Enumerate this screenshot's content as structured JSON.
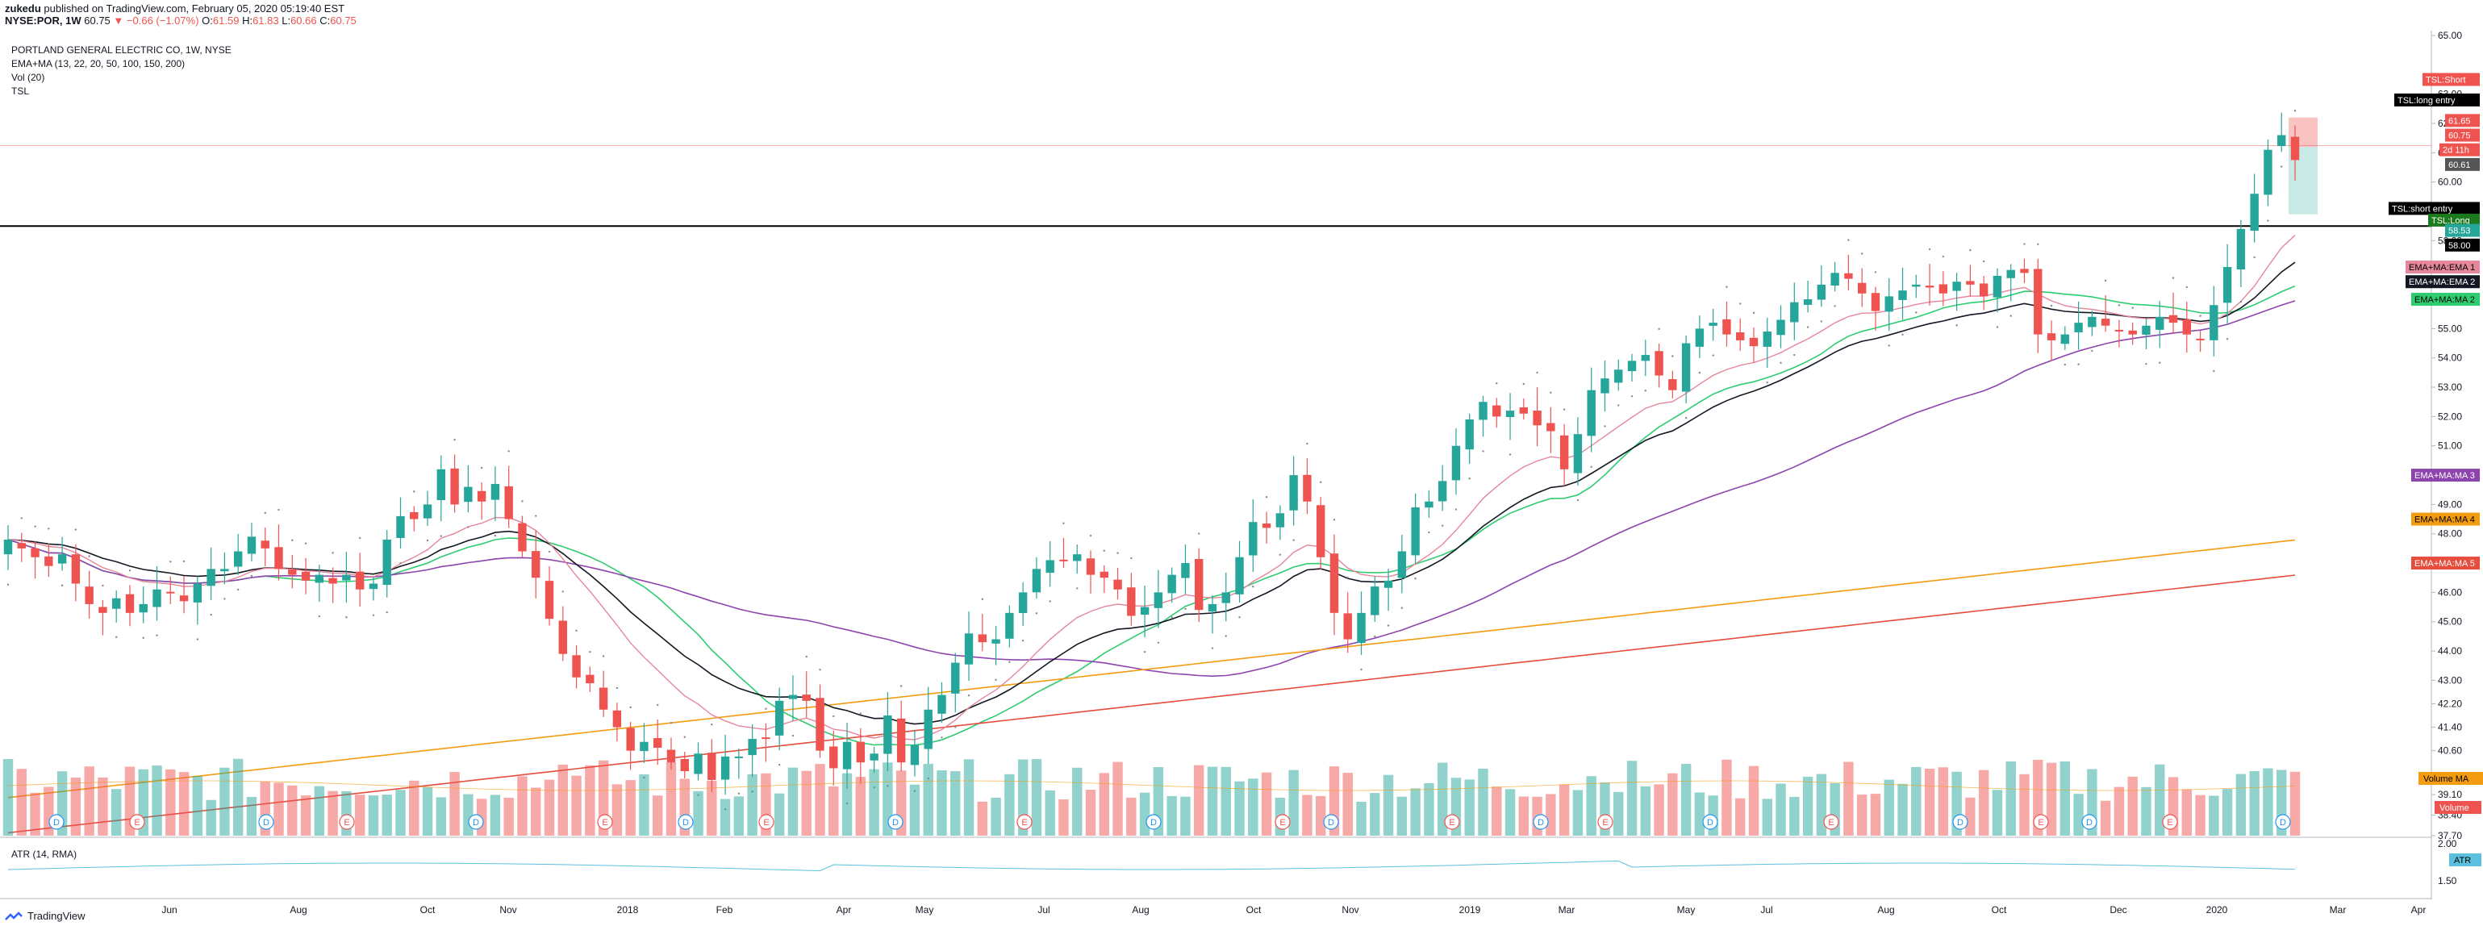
{
  "header": {
    "user": "zukedu",
    "published": "published on TradingView.com, February 05, 2020 05:19:40 EST",
    "symbol_line": "NYSE:POR, 1W",
    "last": "60.75",
    "change": "▼ −0.66 (−1.07%)",
    "o_label": "O:",
    "o": "61.59",
    "h_label": "H:",
    "h": "61.83",
    "l_label": "L:",
    "l": "60.66",
    "c_label": "C:",
    "c": "60.75"
  },
  "legend": {
    "title": "PORTLAND GENERAL ELECTRIC CO, 1W, NYSE",
    "ema_ma": "EMA+MA (13, 22, 20, 50, 100, 150, 200)",
    "vol": "Vol (20)",
    "tsl": "TSL",
    "atr": "ATR (14, RMA)"
  },
  "footer": {
    "brand": "TradingView"
  },
  "colors": {
    "up": "#26a69a",
    "down": "#ef5350",
    "ema1": "#e5869b",
    "ema2": "#131722",
    "ma2": "#2ecc71",
    "ma3": "#8e44ad",
    "ma4": "#f39c12",
    "ma5": "#e74c3c",
    "atr": "#5bc0de"
  },
  "chart_data": {
    "type": "candlestick",
    "title": "PORTLAND GENERAL ELECTRIC CO, 1W, NYSE",
    "price_axis_ticks": [
      "65.00",
      "63.00",
      "62.00",
      "61.00",
      "60.00",
      "59.00",
      "58.00",
      "57.00",
      "56.00",
      "55.00",
      "54.00",
      "53.00",
      "52.00",
      "51.00",
      "50.00",
      "49.00",
      "48.00",
      "47.00",
      "46.00",
      "45.00",
      "44.00",
      "43.00",
      "42.20",
      "41.40",
      "40.60",
      "39.10",
      "38.40",
      "37.70"
    ],
    "atr_axis_ticks": [
      "2.00",
      "1.50"
    ],
    "x_tick_labels": [
      "Jun",
      "Aug",
      "Oct",
      "Nov",
      "2018",
      "Feb",
      "Apr",
      "May",
      "Jul",
      "Aug",
      "Oct",
      "Nov",
      "2019",
      "Mar",
      "May",
      "Jul",
      "Aug",
      "Oct",
      "Dec",
      "2020",
      "Mar",
      "Apr"
    ],
    "ylim": [
      37.7,
      65.0
    ],
    "closes": [
      47.8,
      47.5,
      47.2,
      46.9,
      47.3,
      46.3,
      45.6,
      45.3,
      45.8,
      45.3,
      45.6,
      46.1,
      46.0,
      45.7,
      46.3,
      46.8,
      46.8,
      47.4,
      47.9,
      47.5,
      46.8,
      46.6,
      46.4,
      46.6,
      46.3,
      46.6,
      46.1,
      46.3,
      47.8,
      48.6,
      48.5,
      49.0,
      50.2,
      49.0,
      49.6,
      49.1,
      49.7,
      48.5,
      47.4,
      46.5,
      45.1,
      43.9,
      43.1,
      42.9,
      42.0,
      41.4,
      40.6,
      40.9,
      40.7,
      40.2,
      39.9,
      40.5,
      39.6,
      40.4,
      40.4,
      41.0,
      41.0,
      42.3,
      42.5,
      42.3,
      40.6,
      40.0,
      40.9,
      40.2,
      40.5,
      41.8,
      40.2,
      40.8,
      42.0,
      42.5,
      43.6,
      44.6,
      44.3,
      44.4,
      45.3,
      46.0,
      46.8,
      47.1,
      47.1,
      47.3,
      46.6,
      46.5,
      46.1,
      45.2,
      45.5,
      46.0,
      46.6,
      47.0,
      45.4,
      45.6,
      46.0,
      47.2,
      48.4,
      48.2,
      48.7,
      50.0,
      49.1,
      47.2,
      45.3,
      44.4,
      45.3,
      46.2,
      46.4,
      47.4,
      48.9,
      49.1,
      49.8,
      51.0,
      51.9,
      52.5,
      52.0,
      52.2,
      52.1,
      51.7,
      51.5,
      50.2,
      51.4,
      52.9,
      53.3,
      53.6,
      53.9,
      54.1,
      53.4,
      52.9,
      54.5,
      55.0,
      55.2,
      54.8,
      54.6,
      54.4,
      54.9,
      55.3,
      55.9,
      56.0,
      56.5,
      56.9,
      56.7,
      56.2,
      55.6,
      56.1,
      56.3,
      56.5,
      56.4,
      56.2,
      56.6,
      56.5,
      56.1,
      56.8,
      57.0,
      56.9,
      54.8,
      54.6,
      54.8,
      55.2,
      55.4,
      55.1,
      54.9,
      54.8,
      55.1,
      55.4,
      55.2,
      54.8,
      54.6,
      55.8,
      57.1,
      58.4,
      59.6,
      61.1,
      61.6,
      60.75
    ],
    "volume_ma_label": "Volume MA",
    "volume_label": "Volume",
    "earnings_markers": [
      "E",
      "E",
      "E",
      "E",
      "E",
      "E",
      "E",
      "E",
      "E",
      "E",
      "E",
      "E",
      "E"
    ],
    "dividend_markers": [
      "D",
      "D",
      "D",
      "D",
      "D",
      "D",
      "D",
      "D",
      "D",
      "D",
      "D",
      "D"
    ],
    "right_tags": [
      {
        "text": "TSL:Short",
        "price": 63.5,
        "bg": "#ef5350",
        "fg": "#ffffff"
      },
      {
        "text": "TSL:long entry",
        "price": 62.8,
        "bg": "#000000",
        "fg": "#ffffff"
      },
      {
        "text": "61.65",
        "price": 62.1,
        "bg": "#ef5350",
        "fg": "#ffffff"
      },
      {
        "text": "60.75",
        "price": 61.6,
        "bg": "#ef5350",
        "fg": "#ffffff"
      },
      {
        "text": "2d 11h",
        "price": 61.1,
        "bg": "#ef5350",
        "fg": "#ffffff"
      },
      {
        "text": "60.61",
        "price": 60.6,
        "bg": "#555555",
        "fg": "#ffffff"
      },
      {
        "text": "TSL:short entry",
        "price": 59.1,
        "bg": "#000000",
        "fg": "#ffffff"
      },
      {
        "text": "TSL:Long",
        "price": 58.7,
        "bg": "#1b7a1b",
        "fg": "#ffffff"
      },
      {
        "text": "58.53",
        "price": 58.35,
        "bg": "#26a69a",
        "fg": "#ffffff"
      },
      {
        "text": "58.00",
        "price": 57.85,
        "bg": "#000000",
        "fg": "#ffffff"
      },
      {
        "text": "EMA+MA:EMA 1",
        "price": 57.1,
        "bg": "#e5869b",
        "fg": "#000000"
      },
      {
        "text": "EMA+MA:EMA 2",
        "price": 56.6,
        "bg": "#131722",
        "fg": "#ffffff"
      },
      {
        "text": "EMA+MA:MA 2",
        "price": 56.0,
        "bg": "#2ecc71",
        "fg": "#000000"
      },
      {
        "text": "EMA+MA:MA 3",
        "price": 50.0,
        "bg": "#8e44ad",
        "fg": "#ffffff"
      },
      {
        "text": "EMA+MA:MA 4",
        "price": 48.5,
        "bg": "#f39c12",
        "fg": "#000000"
      },
      {
        "text": "EMA+MA:MA 5",
        "price": 47.0,
        "bg": "#e74c3c",
        "fg": "#ffffff"
      }
    ],
    "horizontal_line": 58.5
  }
}
